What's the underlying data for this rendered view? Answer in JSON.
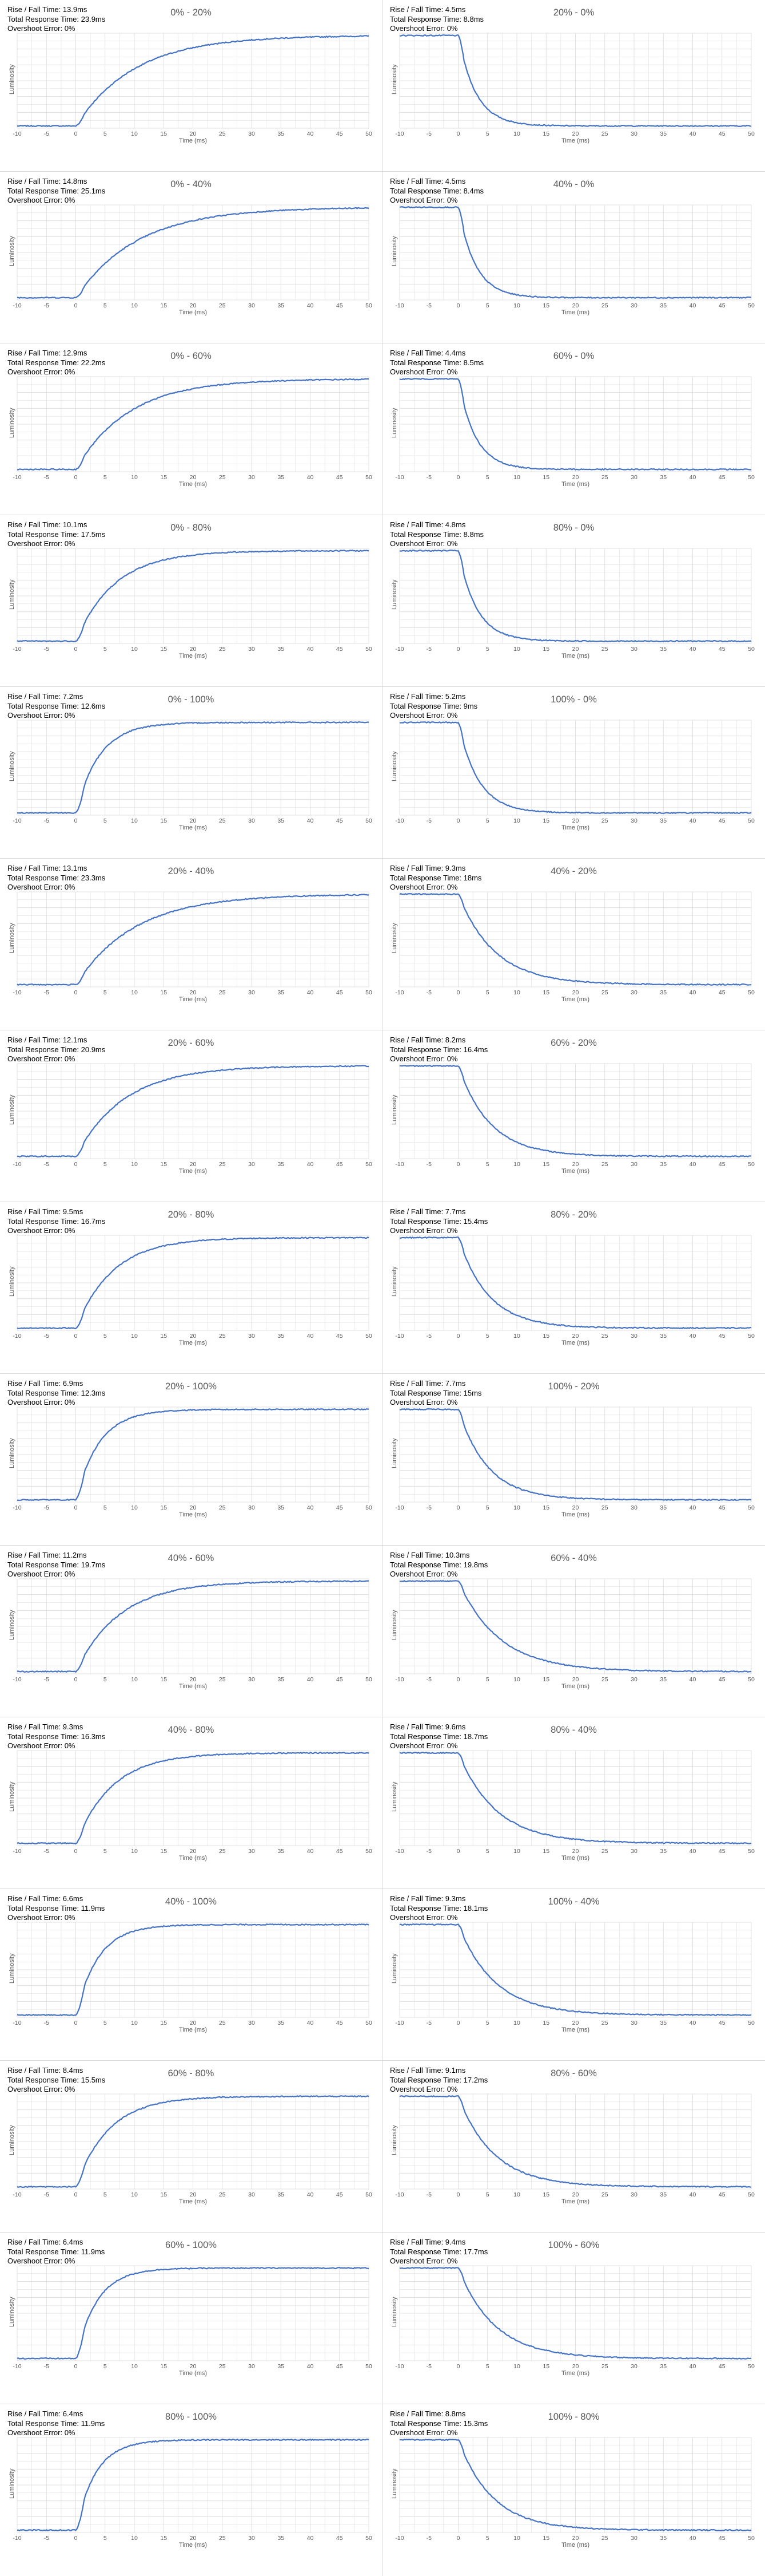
{
  "chart_data": [
    {
      "type": "line",
      "title": "0% - 20%",
      "metrics": {
        "rise_fall": "Rise / Fall Time: 13.9ms",
        "total": "Total Response Time: 23.9ms",
        "overshoot": "Overshoot Error: 0%"
      },
      "direction": "rise",
      "tau": 10.0,
      "xlabel": "Time (ms)",
      "ylabel": "Luminosity",
      "xlim": [
        -10,
        50
      ],
      "xticks": [
        -10,
        -5,
        0,
        5,
        10,
        15,
        20,
        25,
        30,
        35,
        40,
        45,
        50
      ]
    },
    {
      "type": "line",
      "title": "20% - 0%",
      "metrics": {
        "rise_fall": "Rise / Fall Time: 4.5ms",
        "total": "Total Response Time: 8.8ms",
        "overshoot": "Overshoot Error: 0%"
      },
      "direction": "fall",
      "tau": 3.0,
      "xlabel": "Time (ms)",
      "ylabel": "Luminosity",
      "xlim": [
        -10,
        50
      ],
      "xticks": [
        -10,
        -5,
        0,
        5,
        10,
        15,
        20,
        25,
        30,
        35,
        40,
        45,
        50
      ]
    },
    {
      "type": "line",
      "title": "0% - 40%",
      "metrics": {
        "rise_fall": "Rise / Fall Time: 14.8ms",
        "total": "Total Response Time: 25.1ms",
        "overshoot": "Overshoot Error: 0%"
      },
      "direction": "rise",
      "tau": 10.5,
      "xlabel": "Time (ms)",
      "ylabel": "Luminosity",
      "xlim": [
        -10,
        50
      ],
      "xticks": [
        -10,
        -5,
        0,
        5,
        10,
        15,
        20,
        25,
        30,
        35,
        40,
        45,
        50
      ]
    },
    {
      "type": "line",
      "title": "40% - 0%",
      "metrics": {
        "rise_fall": "Rise / Fall Time: 4.5ms",
        "total": "Total Response Time: 8.4ms",
        "overshoot": "Overshoot Error: 0%"
      },
      "direction": "fall",
      "tau": 2.9,
      "xlabel": "Time (ms)",
      "ylabel": "Luminosity",
      "xlim": [
        -10,
        50
      ],
      "xticks": [
        -10,
        -5,
        0,
        5,
        10,
        15,
        20,
        25,
        30,
        35,
        40,
        45,
        50
      ]
    },
    {
      "type": "line",
      "title": "0% - 60%",
      "metrics": {
        "rise_fall": "Rise / Fall Time: 12.9ms",
        "total": "Total Response Time: 22.2ms",
        "overshoot": "Overshoot Error: 0%"
      },
      "direction": "rise",
      "tau": 9.0,
      "xlabel": "Time (ms)",
      "ylabel": "Luminosity",
      "xlim": [
        -10,
        50
      ],
      "xticks": [
        -10,
        -5,
        0,
        5,
        10,
        15,
        20,
        25,
        30,
        35,
        40,
        45,
        50
      ]
    },
    {
      "type": "line",
      "title": "60% - 0%",
      "metrics": {
        "rise_fall": "Rise / Fall Time: 4.4ms",
        "total": "Total Response Time: 8.5ms",
        "overshoot": "Overshoot Error: 0%"
      },
      "direction": "fall",
      "tau": 2.9,
      "xlabel": "Time (ms)",
      "ylabel": "Luminosity",
      "xlim": [
        -10,
        50
      ],
      "xticks": [
        -10,
        -5,
        0,
        5,
        10,
        15,
        20,
        25,
        30,
        35,
        40,
        45,
        50
      ]
    },
    {
      "type": "line",
      "title": "0% - 80%",
      "metrics": {
        "rise_fall": "Rise / Fall Time: 10.1ms",
        "total": "Total Response Time: 17.5ms",
        "overshoot": "Overshoot Error: 0%"
      },
      "direction": "rise",
      "tau": 6.6,
      "xlabel": "Time (ms)",
      "ylabel": "Luminosity",
      "xlim": [
        -10,
        50
      ],
      "xticks": [
        -10,
        -5,
        0,
        5,
        10,
        15,
        20,
        25,
        30,
        35,
        40,
        45,
        50
      ]
    },
    {
      "type": "line",
      "title": "80% - 0%",
      "metrics": {
        "rise_fall": "Rise / Fall Time: 4.8ms",
        "total": "Total Response Time: 8.8ms",
        "overshoot": "Overshoot Error: 0%"
      },
      "direction": "fall",
      "tau": 3.1,
      "xlabel": "Time (ms)",
      "ylabel": "Luminosity",
      "xlim": [
        -10,
        50
      ],
      "xticks": [
        -10,
        -5,
        0,
        5,
        10,
        15,
        20,
        25,
        30,
        35,
        40,
        45,
        50
      ]
    },
    {
      "type": "line",
      "title": "0% - 100%",
      "metrics": {
        "rise_fall": "Rise / Fall Time: 7.2ms",
        "total": "Total Response Time: 12.6ms",
        "overshoot": "Overshoot Error: 0%"
      },
      "direction": "rise",
      "tau": 4.0,
      "xlabel": "Time (ms)",
      "ylabel": "Luminosity",
      "xlim": [
        -10,
        50
      ],
      "xticks": [
        -10,
        -5,
        0,
        5,
        10,
        15,
        20,
        25,
        30,
        35,
        40,
        45,
        50
      ]
    },
    {
      "type": "line",
      "title": "100% - 0%",
      "metrics": {
        "rise_fall": "Rise / Fall Time: 5.2ms",
        "total": "Total Response Time: 9ms",
        "overshoot": "Overshoot Error: 0%"
      },
      "direction": "fall",
      "tau": 3.4,
      "xlabel": "Time (ms)",
      "ylabel": "Luminosity",
      "xlim": [
        -10,
        50
      ],
      "xticks": [
        -10,
        -5,
        0,
        5,
        10,
        15,
        20,
        25,
        30,
        35,
        40,
        45,
        50
      ]
    },
    {
      "type": "line",
      "title": "20% - 40%",
      "metrics": {
        "rise_fall": "Rise / Fall Time: 13.1ms",
        "total": "Total Response Time: 23.3ms",
        "overshoot": "Overshoot Error: 0%"
      },
      "direction": "rise",
      "tau": 10.0,
      "xlabel": "Time (ms)",
      "ylabel": "Luminosity",
      "xlim": [
        -10,
        50
      ],
      "xticks": [
        -10,
        -5,
        0,
        5,
        10,
        15,
        20,
        25,
        30,
        35,
        40,
        45,
        50
      ]
    },
    {
      "type": "line",
      "title": "40% - 20%",
      "metrics": {
        "rise_fall": "Rise / Fall Time: 9.3ms",
        "total": "Total Response Time: 18ms",
        "overshoot": "Overshoot Error: 0%"
      },
      "direction": "fall",
      "tau": 6.2,
      "xlabel": "Time (ms)",
      "ylabel": "Luminosity",
      "xlim": [
        -10,
        50
      ],
      "xticks": [
        -10,
        -5,
        0,
        5,
        10,
        15,
        20,
        25,
        30,
        35,
        40,
        45,
        50
      ]
    },
    {
      "type": "line",
      "title": "20% - 60%",
      "metrics": {
        "rise_fall": "Rise / Fall Time: 12.1ms",
        "total": "Total Response Time: 20.9ms",
        "overshoot": "Overshoot Error: 0%"
      },
      "direction": "rise",
      "tau": 8.2,
      "xlabel": "Time (ms)",
      "ylabel": "Luminosity",
      "xlim": [
        -10,
        50
      ],
      "xticks": [
        -10,
        -5,
        0,
        5,
        10,
        15,
        20,
        25,
        30,
        35,
        40,
        45,
        50
      ]
    },
    {
      "type": "line",
      "title": "60% - 20%",
      "metrics": {
        "rise_fall": "Rise / Fall Time: 8.2ms",
        "total": "Total Response Time: 16.4ms",
        "overshoot": "Overshoot Error: 0%"
      },
      "direction": "fall",
      "tau": 5.4,
      "xlabel": "Time (ms)",
      "ylabel": "Luminosity",
      "xlim": [
        -10,
        50
      ],
      "xticks": [
        -10,
        -5,
        0,
        5,
        10,
        15,
        20,
        25,
        30,
        35,
        40,
        45,
        50
      ]
    },
    {
      "type": "line",
      "title": "20% - 80%",
      "metrics": {
        "rise_fall": "Rise / Fall Time: 9.5ms",
        "total": "Total Response Time: 16.7ms",
        "overshoot": "Overshoot Error: 0%"
      },
      "direction": "rise",
      "tau": 6.3,
      "xlabel": "Time (ms)",
      "ylabel": "Luminosity",
      "xlim": [
        -10,
        50
      ],
      "xticks": [
        -10,
        -5,
        0,
        5,
        10,
        15,
        20,
        25,
        30,
        35,
        40,
        45,
        50
      ]
    },
    {
      "type": "line",
      "title": "80% - 20%",
      "metrics": {
        "rise_fall": "Rise / Fall Time: 7.7ms",
        "total": "Total Response Time: 15.4ms",
        "overshoot": "Overshoot Error: 0%"
      },
      "direction": "fall",
      "tau": 5.1,
      "xlabel": "Time (ms)",
      "ylabel": "Luminosity",
      "xlim": [
        -10,
        50
      ],
      "xticks": [
        -10,
        -5,
        0,
        5,
        10,
        15,
        20,
        25,
        30,
        35,
        40,
        45,
        50
      ]
    },
    {
      "type": "line",
      "title": "20% - 100%",
      "metrics": {
        "rise_fall": "Rise / Fall Time: 6.9ms",
        "total": "Total Response Time: 12.3ms",
        "overshoot": "Overshoot Error: 0%"
      },
      "direction": "rise",
      "tau": 4.0,
      "xlabel": "Time (ms)",
      "ylabel": "Luminosity",
      "xlim": [
        -10,
        50
      ],
      "xticks": [
        -10,
        -5,
        0,
        5,
        10,
        15,
        20,
        25,
        30,
        35,
        40,
        45,
        50
      ]
    },
    {
      "type": "line",
      "title": "100% - 20%",
      "metrics": {
        "rise_fall": "Rise / Fall Time: 7.7ms",
        "total": "Total Response Time: 15ms",
        "overshoot": "Overshoot Error: 0%"
      },
      "direction": "fall",
      "tau": 5.0,
      "xlabel": "Time (ms)",
      "ylabel": "Luminosity",
      "xlim": [
        -10,
        50
      ],
      "xticks": [
        -10,
        -5,
        0,
        5,
        10,
        15,
        20,
        25,
        30,
        35,
        40,
        45,
        50
      ]
    },
    {
      "type": "line",
      "title": "40% - 60%",
      "metrics": {
        "rise_fall": "Rise / Fall Time: 11.2ms",
        "total": "Total Response Time: 19.7ms",
        "overshoot": "Overshoot Error: 0%"
      },
      "direction": "rise",
      "tau": 7.5,
      "xlabel": "Time (ms)",
      "ylabel": "Luminosity",
      "xlim": [
        -10,
        50
      ],
      "xticks": [
        -10,
        -5,
        0,
        5,
        10,
        15,
        20,
        25,
        30,
        35,
        40,
        45,
        50
      ]
    },
    {
      "type": "line",
      "title": "60% - 40%",
      "metrics": {
        "rise_fall": "Rise / Fall Time: 10.3ms",
        "total": "Total Response Time: 19.8ms",
        "overshoot": "Overshoot Error: 0%"
      },
      "direction": "fall",
      "tau": 7.0,
      "xlabel": "Time (ms)",
      "ylabel": "Luminosity",
      "xlim": [
        -10,
        50
      ],
      "xticks": [
        -10,
        -5,
        0,
        5,
        10,
        15,
        20,
        25,
        30,
        35,
        40,
        45,
        50
      ]
    },
    {
      "type": "line",
      "title": "40% - 80%",
      "metrics": {
        "rise_fall": "Rise / Fall Time: 9.3ms",
        "total": "Total Response Time: 16.3ms",
        "overshoot": "Overshoot Error: 0%"
      },
      "direction": "rise",
      "tau": 6.2,
      "xlabel": "Time (ms)",
      "ylabel": "Luminosity",
      "xlim": [
        -10,
        50
      ],
      "xticks": [
        -10,
        -5,
        0,
        5,
        10,
        15,
        20,
        25,
        30,
        35,
        40,
        45,
        50
      ]
    },
    {
      "type": "line",
      "title": "80% - 40%",
      "metrics": {
        "rise_fall": "Rise / Fall Time: 9.6ms",
        "total": "Total Response Time: 18.7ms",
        "overshoot": "Overshoot Error: 0%"
      },
      "direction": "fall",
      "tau": 6.4,
      "xlabel": "Time (ms)",
      "ylabel": "Luminosity",
      "xlim": [
        -10,
        50
      ],
      "xticks": [
        -10,
        -5,
        0,
        5,
        10,
        15,
        20,
        25,
        30,
        35,
        40,
        45,
        50
      ]
    },
    {
      "type": "line",
      "title": "40% - 100%",
      "metrics": {
        "rise_fall": "Rise / Fall Time: 6.6ms",
        "total": "Total Response Time: 11.9ms",
        "overshoot": "Overshoot Error: 0%"
      },
      "direction": "rise",
      "tau": 3.8,
      "xlabel": "Time (ms)",
      "ylabel": "Luminosity",
      "xlim": [
        -10,
        50
      ],
      "xticks": [
        -10,
        -5,
        0,
        5,
        10,
        15,
        20,
        25,
        30,
        35,
        40,
        45,
        50
      ]
    },
    {
      "type": "line",
      "title": "100% - 40%",
      "metrics": {
        "rise_fall": "Rise / Fall Time: 9.3ms",
        "total": "Total Response Time: 18.1ms",
        "overshoot": "Overshoot Error: 0%"
      },
      "direction": "fall",
      "tau": 6.2,
      "xlabel": "Time (ms)",
      "ylabel": "Luminosity",
      "xlim": [
        -10,
        50
      ],
      "xticks": [
        -10,
        -5,
        0,
        5,
        10,
        15,
        20,
        25,
        30,
        35,
        40,
        45,
        50
      ]
    },
    {
      "type": "line",
      "title": "60% - 80%",
      "metrics": {
        "rise_fall": "Rise / Fall Time: 8.4ms",
        "total": "Total Response Time: 15.5ms",
        "overshoot": "Overshoot Error: 0%"
      },
      "direction": "rise",
      "tau": 5.6,
      "xlabel": "Time (ms)",
      "ylabel": "Luminosity",
      "xlim": [
        -10,
        50
      ],
      "xticks": [
        -10,
        -5,
        0,
        5,
        10,
        15,
        20,
        25,
        30,
        35,
        40,
        45,
        50
      ]
    },
    {
      "type": "line",
      "title": "80% - 60%",
      "metrics": {
        "rise_fall": "Rise / Fall Time: 9.1ms",
        "total": "Total Response Time: 17.2ms",
        "overshoot": "Overshoot Error: 0%"
      },
      "direction": "fall",
      "tau": 6.0,
      "xlabel": "Time (ms)",
      "ylabel": "Luminosity",
      "xlim": [
        -10,
        50
      ],
      "xticks": [
        -10,
        -5,
        0,
        5,
        10,
        15,
        20,
        25,
        30,
        35,
        40,
        45,
        50
      ]
    },
    {
      "type": "line",
      "title": "60% - 100%",
      "metrics": {
        "rise_fall": "Rise / Fall Time: 6.4ms",
        "total": "Total Response Time: 11.9ms",
        "overshoot": "Overshoot Error: 0%"
      },
      "direction": "rise",
      "tau": 3.6,
      "xlabel": "Time (ms)",
      "ylabel": "Luminosity",
      "xlim": [
        -10,
        50
      ],
      "xticks": [
        -10,
        -5,
        0,
        5,
        10,
        15,
        20,
        25,
        30,
        35,
        40,
        45,
        50
      ]
    },
    {
      "type": "line",
      "title": "100% - 60%",
      "metrics": {
        "rise_fall": "Rise / Fall Time: 9.4ms",
        "total": "Total Response Time: 17.7ms",
        "overshoot": "Overshoot Error: 0%"
      },
      "direction": "fall",
      "tau": 6.2,
      "xlabel": "Time (ms)",
      "ylabel": "Luminosity",
      "xlim": [
        -10,
        50
      ],
      "xticks": [
        -10,
        -5,
        0,
        5,
        10,
        15,
        20,
        25,
        30,
        35,
        40,
        45,
        50
      ]
    },
    {
      "type": "line",
      "title": "80% - 100%",
      "metrics": {
        "rise_fall": "Rise / Fall Time: 6.4ms",
        "total": "Total Response Time: 11.9ms",
        "overshoot": "Overshoot Error: 0%"
      },
      "direction": "rise",
      "tau": 3.4,
      "xlabel": "Time (ms)",
      "ylabel": "Luminosity",
      "xlim": [
        -10,
        50
      ],
      "xticks": [
        -10,
        -5,
        0,
        5,
        10,
        15,
        20,
        25,
        30,
        35,
        40,
        45,
        50
      ]
    },
    {
      "type": "line",
      "title": "100% - 80%",
      "metrics": {
        "rise_fall": "Rise / Fall Time: 8.8ms",
        "total": "Total Response Time: 15.3ms",
        "overshoot": "Overshoot Error: 0%"
      },
      "direction": "fall",
      "tau": 5.8,
      "xlabel": "Time (ms)",
      "ylabel": "Luminosity",
      "xlim": [
        -10,
        50
      ],
      "xticks": [
        -10,
        -5,
        0,
        5,
        10,
        15,
        20,
        25,
        30,
        35,
        40,
        45,
        50
      ]
    }
  ],
  "colors": {
    "line": "#4472c4",
    "grid": "#d9d9d9",
    "axis_text": "#595959",
    "divider": "#d9d9d9"
  }
}
